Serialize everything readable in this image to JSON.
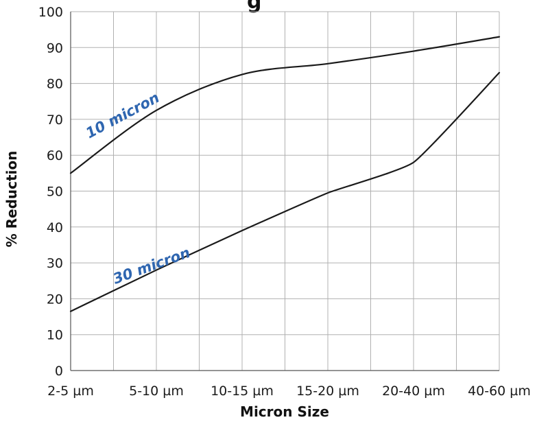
{
  "chart_data": {
    "type": "line",
    "title_fragment": "g",
    "xlabel": "Micron Size",
    "ylabel": "% Reduction",
    "categories": [
      "2-5 µm",
      "5-10 µm",
      "10-15 µm",
      "15-20 µm",
      "20-40 µm",
      "40-60 µm"
    ],
    "ylim": [
      0,
      100
    ],
    "yticks": [
      0,
      10,
      20,
      30,
      40,
      50,
      60,
      70,
      80,
      90,
      100
    ],
    "grid": true,
    "label_color": "#2f66b0",
    "line_color": "#1a1a1a",
    "grid_color": "#b0b0b0",
    "series": [
      {
        "name": "10 micron",
        "values": [
          55,
          72.5,
          82.5,
          85.5,
          89,
          93
        ]
      },
      {
        "name": "30 micron",
        "values": [
          16.5,
          28,
          39,
          49.5,
          58,
          83
        ]
      }
    ]
  }
}
